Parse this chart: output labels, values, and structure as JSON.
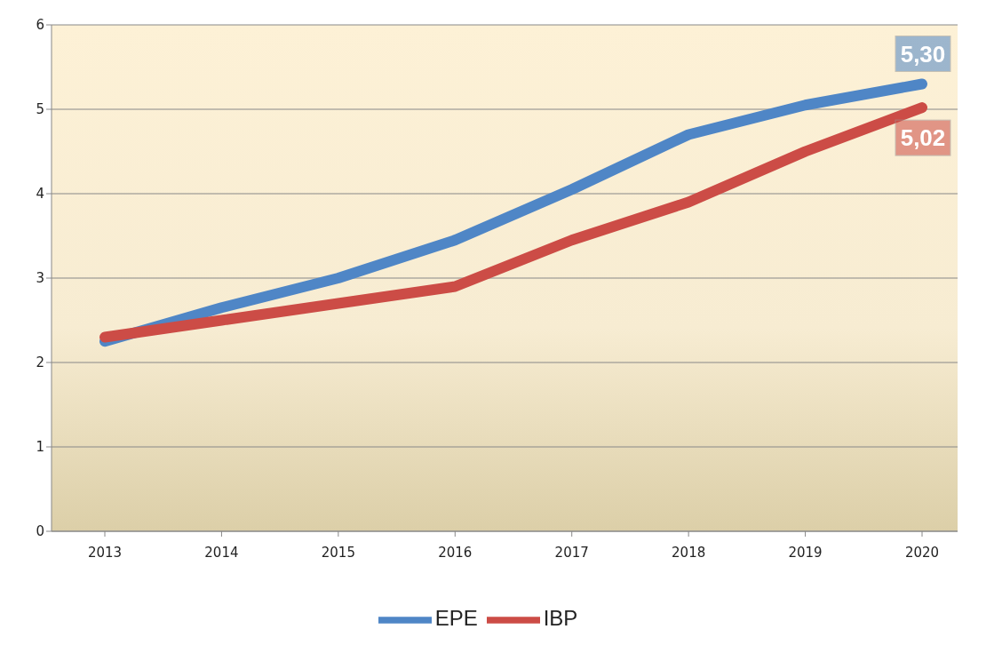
{
  "chart_data": {
    "type": "line",
    "categories": [
      "2013",
      "2014",
      "2015",
      "2016",
      "2017",
      "2018",
      "2019",
      "2020"
    ],
    "series": [
      {
        "name": "EPE",
        "color": "#4f86c6",
        "values": [
          2.25,
          2.65,
          3.0,
          3.45,
          4.05,
          4.7,
          5.05,
          5.3
        ],
        "value_labels": [
          null,
          null,
          null,
          null,
          null,
          null,
          null,
          "5,30"
        ]
      },
      {
        "name": "IBP",
        "color": "#cc4c46",
        "values": [
          2.3,
          2.5,
          2.7,
          2.9,
          3.45,
          3.9,
          4.5,
          5.02
        ],
        "value_labels": [
          null,
          null,
          null,
          null,
          null,
          null,
          null,
          "5,02"
        ]
      }
    ],
    "ylim": [
      0,
      6
    ],
    "yticks": [
      0,
      1,
      2,
      3,
      4,
      5,
      6
    ],
    "grid": "y",
    "legend": "bottom",
    "marker": "none",
    "line_style": "solid"
  }
}
